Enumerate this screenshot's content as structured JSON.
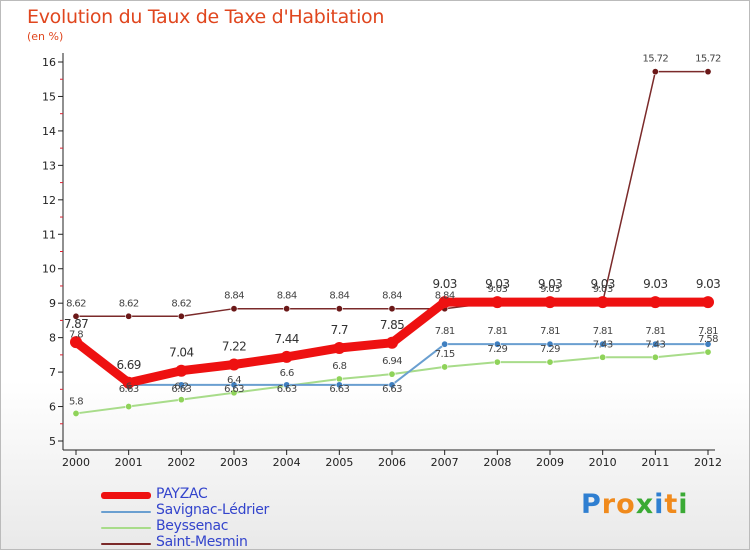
{
  "chart_data": {
    "type": "line",
    "title": "Evolution du Taux de Taxe d'Habitation",
    "subtitle": "(en %)",
    "xlabel": "",
    "ylabel": "(en %)",
    "x": [
      "2000",
      "2001",
      "2002",
      "2003",
      "2004",
      "2005",
      "2006",
      "2007",
      "2008",
      "2009",
      "2010",
      "2011",
      "2012"
    ],
    "ylim": [
      5,
      16
    ],
    "yticks": [
      "5",
      "6",
      "7",
      "8",
      "9",
      "10",
      "11",
      "12",
      "13",
      "14",
      "15",
      "16"
    ],
    "grid": false,
    "legend_position": "bottom-left",
    "series": [
      {
        "name": "Saint-Mesmin",
        "color": "#7b2a2a",
        "markerColor": "#6b1818",
        "values": [
          8.62,
          8.62,
          8.62,
          8.84,
          8.84,
          8.84,
          8.84,
          8.84,
          9.03,
          9.03,
          9.03,
          15.72,
          15.72
        ],
        "labels": [
          "8.62",
          "8.62",
          "8.62",
          "8.84",
          "8.84",
          "8.84",
          "8.84",
          "8.84",
          "9.03",
          "9.03",
          "9.03",
          "15.72",
          "15.72"
        ]
      },
      {
        "name": "Beyssenac",
        "color": "#a8dc8a",
        "markerColor": "#8fd35a",
        "values": [
          5.8,
          6,
          6.2,
          6.4,
          6.6,
          6.8,
          6.94,
          7.15,
          7.29,
          7.29,
          7.43,
          7.43,
          7.58
        ],
        "labels": [
          "5.8",
          "6",
          "6.2",
          "6.4",
          "6.6",
          "6.8",
          "6.94",
          "7.15",
          "7.29",
          "7.29",
          "7.43",
          "7.43",
          "7.58"
        ]
      },
      {
        "name": "Savignac-Lédrier",
        "color": "#6a9fd0",
        "markerColor": "#3f7fc0",
        "values": [
          7.8,
          6.63,
          6.63,
          6.63,
          6.63,
          6.63,
          6.63,
          7.81,
          7.81,
          7.81,
          7.81,
          7.81,
          7.81
        ],
        "labels": [
          "7.8",
          "6.63",
          "6.63",
          "6.63",
          "6.63",
          "6.63",
          "6.63",
          "7.81",
          "7.81",
          "7.81",
          "7.81",
          "7.81",
          "7.81"
        ]
      },
      {
        "name": "PAYZAC",
        "color": "#ee1111",
        "markerColor": "#ee1111",
        "values": [
          7.87,
          6.69,
          7.04,
          7.22,
          7.44,
          7.7,
          7.85,
          9.03,
          9.03,
          9.03,
          9.03,
          9.03,
          9.03
        ],
        "labels": [
          "7.87",
          "6.69",
          "7.04",
          "7.22",
          "7.44",
          "7.7",
          "7.85",
          "9.03",
          "9.03",
          "9.03",
          "9.03",
          "9.03",
          "9.03"
        ]
      }
    ]
  },
  "legend": {
    "items": [
      {
        "label": "PAYZAC",
        "color": "#ee1111"
      },
      {
        "label": "Savignac-Lédrier",
        "color": "#6a9fd0"
      },
      {
        "label": "Beyssenac",
        "color": "#a8dc8a"
      },
      {
        "label": "Saint-Mesmin",
        "color": "#7b2a2a"
      }
    ]
  },
  "brand": {
    "letters": [
      "P",
      "r",
      "o",
      "x",
      "i",
      "t",
      "i"
    ],
    "colors": [
      "#2f7fd1",
      "#f08a1c",
      "#f08a1c",
      "#3aaa35",
      "#2f7fd1",
      "#f08a1c",
      "#3aaa35"
    ]
  }
}
